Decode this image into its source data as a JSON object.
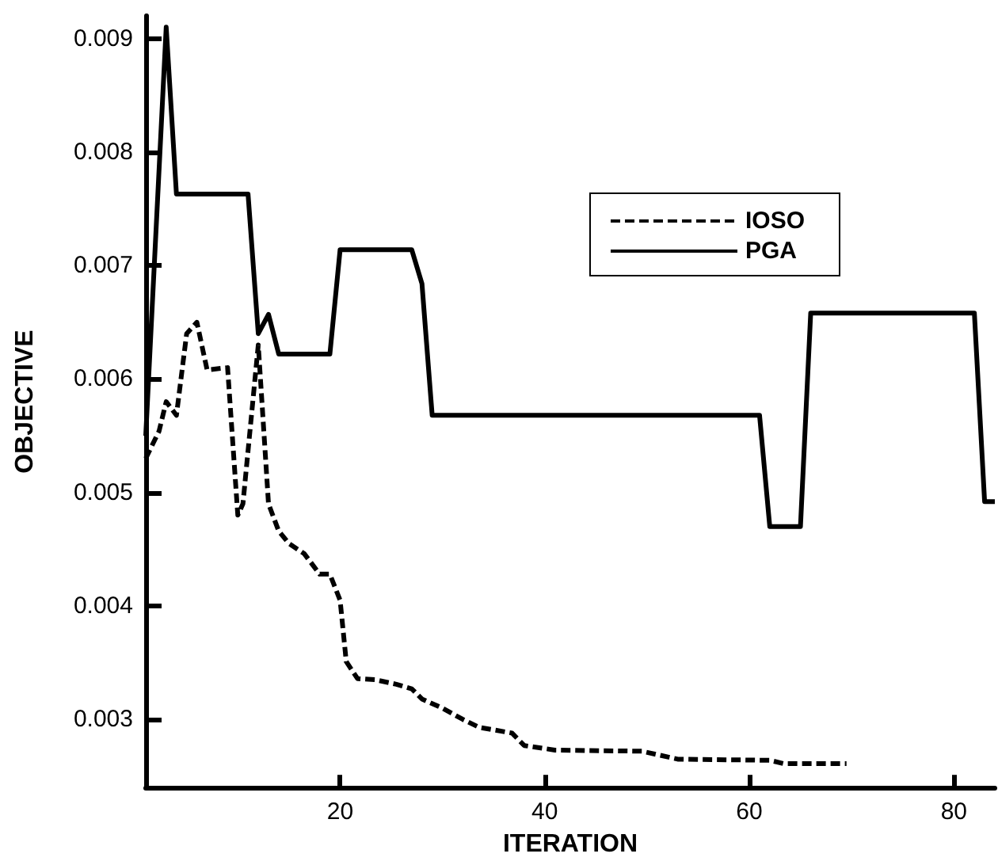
{
  "chart_data": {
    "type": "line",
    "xlabel": "ITERATION",
    "ylabel": "OBJECTIVE",
    "xlim": [
      1,
      84
    ],
    "xticks": [
      20,
      40,
      60,
      80
    ],
    "ylim": [
      0.0024,
      0.0092
    ],
    "yticks": [
      0.003,
      0.004,
      0.005,
      0.006,
      0.007,
      0.008,
      0.009
    ],
    "grid": false,
    "legend": "top right",
    "marker": "none",
    "series": [
      {
        "name": "IOSO",
        "color": "#000000",
        "line_style": "dashed",
        "x": [
          1,
          2.3,
          3,
          4,
          5,
          6,
          7,
          9,
          10,
          10.5,
          12,
          13,
          14,
          15,
          16.5,
          18,
          19,
          20,
          20.6,
          21.7,
          23.4,
          25.5,
          27,
          28,
          30,
          32,
          33.6,
          36.8,
          38,
          41,
          49.5,
          51,
          53,
          62,
          63.4,
          69.5
        ],
        "values": [
          0.0053,
          0.00554,
          0.0058,
          0.00568,
          0.0064,
          0.0065,
          0.00608,
          0.0061,
          0.0048,
          0.0049,
          0.0063,
          0.0049,
          0.00466,
          0.00455,
          0.00446,
          0.00428,
          0.00428,
          0.00405,
          0.00351,
          0.00336,
          0.00335,
          0.00331,
          0.00327,
          0.00318,
          0.0031,
          0.003,
          0.00293,
          0.00288,
          0.00277,
          0.00273,
          0.00272,
          0.00269,
          0.00265,
          0.00264,
          0.00261,
          0.00261
        ]
      },
      {
        "name": "PGA",
        "color": "#000000",
        "line_style": "solid",
        "x": [
          1,
          3,
          4,
          11,
          12,
          13,
          14,
          19,
          20,
          27,
          28,
          29,
          61,
          62,
          65,
          66,
          82,
          83,
          84
        ],
        "values": [
          0.0055,
          0.0091,
          0.00763,
          0.00763,
          0.0064,
          0.00657,
          0.00622,
          0.00622,
          0.00714,
          0.00714,
          0.00684,
          0.00568,
          0.00568,
          0.0047,
          0.0047,
          0.00658,
          0.00658,
          0.00492,
          0.00492
        ]
      }
    ]
  }
}
